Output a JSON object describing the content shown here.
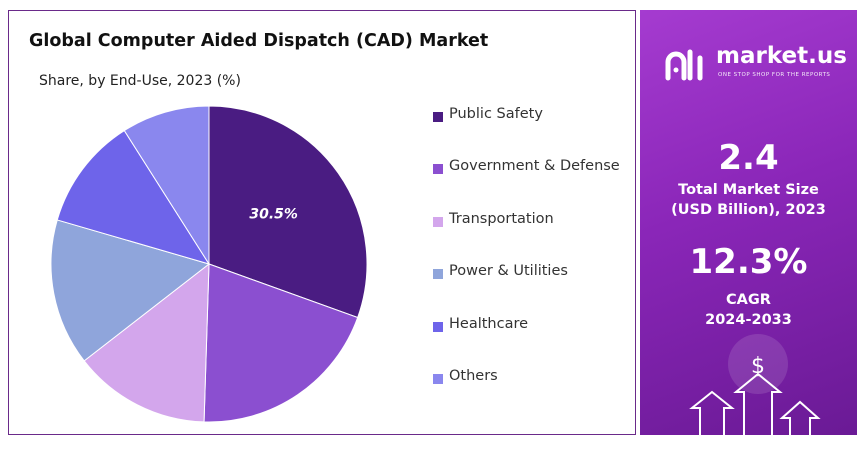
{
  "chart_data": {
    "type": "pie",
    "title": "Global Computer Aided Dispatch (CAD) Market",
    "subtitle": "Share, by End-Use, 2023 (%)",
    "categories": [
      "Public Safety",
      "Government & Defense",
      "Transportation",
      "Power & Utilities",
      "Healthcare",
      "Others"
    ],
    "values": [
      30.5,
      20.0,
      14.0,
      15.0,
      11.5,
      9.0
    ],
    "colors": [
      "#4a1c82",
      "#8b4fd0",
      "#d3a6ec",
      "#8fa5db",
      "#6e64ea",
      "#8a87ee"
    ],
    "data_labels": [
      "30.5%",
      "",
      "",
      "",
      "",
      ""
    ]
  },
  "brand": {
    "name": "market.us",
    "tagline": "ONE STOP SHOP FOR THE REPORTS"
  },
  "stats": {
    "market_size_value": "2.4",
    "market_size_label_line1": "Total Market Size",
    "market_size_label_line2": "(USD Billion), 2023",
    "cagr_value": "12.3%",
    "cagr_label_line1": "CAGR",
    "cagr_label_line2": "2024-2033"
  },
  "decor": {
    "dollar_symbol": "$"
  }
}
